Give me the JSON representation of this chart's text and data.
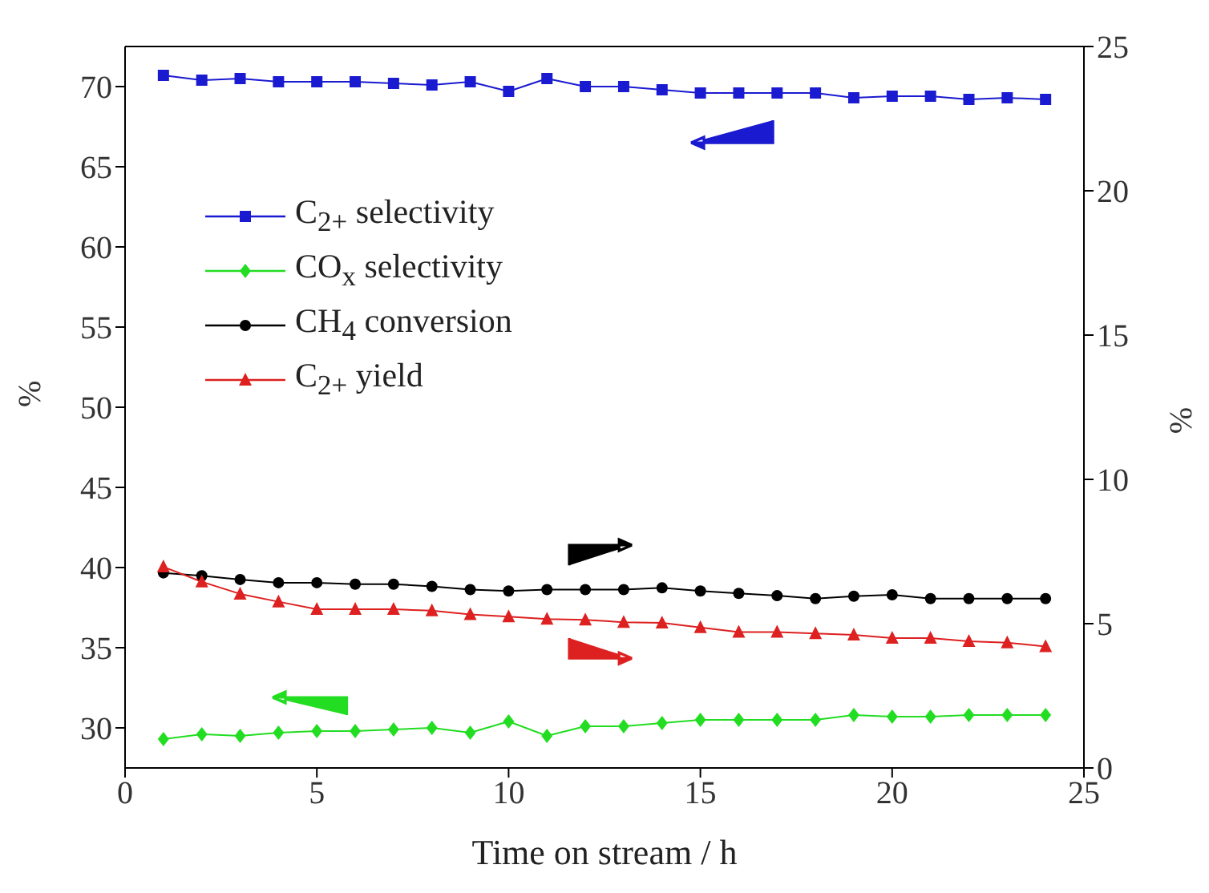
{
  "chart_data": {
    "type": "line",
    "xlabel": "Time on stream / h",
    "ylabel": "%",
    "y2label": "%",
    "x": [
      1,
      2,
      3,
      4,
      5,
      6,
      7,
      8,
      9,
      10,
      11,
      12,
      13,
      14,
      15,
      16,
      17,
      18,
      19,
      20,
      21,
      22,
      23,
      24
    ],
    "series": [
      {
        "name": "C$_{2+}$ selectivity",
        "color": "#1a1ad0",
        "marker": "square",
        "values": [
          70.7,
          70.4,
          70.5,
          70.3,
          70.3,
          70.3,
          70.2,
          70.1,
          70.3,
          69.7,
          70.5,
          70.0,
          70.0,
          69.8,
          69.6,
          69.6,
          69.6,
          69.6,
          69.3,
          69.4,
          69.4,
          69.2,
          69.3,
          69.2
        ]
      },
      {
        "name": "CO$_{x}$ selectivity",
        "color": "#22dd22",
        "marker": "diamond",
        "values": [
          29.3,
          29.6,
          29.5,
          29.7,
          29.8,
          29.8,
          29.9,
          30.0,
          29.7,
          30.4,
          29.5,
          30.1,
          30.1,
          30.3,
          30.5,
          30.5,
          30.5,
          30.5,
          30.8,
          30.7,
          30.7,
          30.8,
          30.8,
          30.8
        ]
      },
      {
        "name": "CH$_{4}$ conversion",
        "color": "#000000",
        "marker": "circle",
        "axis": "y2",
        "values": [
          6.76,
          6.66,
          6.53,
          6.42,
          6.42,
          6.37,
          6.37,
          6.29,
          6.18,
          6.13,
          6.18,
          6.18,
          6.18,
          6.24,
          6.13,
          6.05,
          5.97,
          5.87,
          5.95,
          6.0,
          5.87,
          5.87,
          5.87,
          5.87
        ]
      },
      {
        "name": "C$_{2+}$ yield",
        "color": "#dd2020",
        "marker": "triangle",
        "axis": "y2",
        "values": [
          6.97,
          6.45,
          6.03,
          5.76,
          5.5,
          5.5,
          5.5,
          5.45,
          5.32,
          5.24,
          5.16,
          5.13,
          5.05,
          5.03,
          4.87,
          4.71,
          4.71,
          4.66,
          4.61,
          4.5,
          4.5,
          4.39,
          4.34,
          4.21
        ]
      }
    ],
    "xlim": [
      0,
      25
    ],
    "xticks": [
      0,
      5,
      10,
      15,
      20,
      25
    ],
    "ylim": [
      27.5,
      72.5
    ],
    "yticks": [
      30,
      35,
      40,
      45,
      50,
      55,
      60,
      65,
      70
    ],
    "y2lim": [
      0,
      25
    ],
    "y2ticks": [
      0,
      5,
      10,
      15,
      20,
      25
    ],
    "grid": false,
    "legend": "top left",
    "line_style": "solid"
  }
}
